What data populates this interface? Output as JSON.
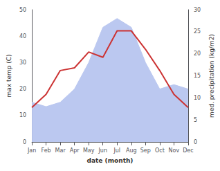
{
  "chart_data": {
    "type": "line",
    "categories": [
      "Jan",
      "Feb",
      "Mar",
      "Apr",
      "May",
      "Jun",
      "Jul",
      "Aug",
      "Sep",
      "Oct",
      "Nov",
      "Dec"
    ],
    "xlabel": "date (month)",
    "ylabel": "max temp (C)",
    "y2label": "med. precipitation (kg/m2)",
    "series": [
      {
        "type": "area",
        "axis": "y2",
        "color": "#bbc8f0",
        "values": [
          9,
          8,
          9,
          12,
          18,
          26,
          28,
          26,
          18,
          12,
          13,
          12
        ]
      },
      {
        "type": "line",
        "color": "#cc3333",
        "values": [
          13,
          18,
          27,
          28,
          34,
          32,
          42,
          42,
          35,
          27,
          18,
          13
        ]
      }
    ],
    "ylim": [
      0,
      50
    ],
    "yticks": [
      0,
      10,
      20,
      30,
      40,
      50
    ],
    "y2lim": [
      0,
      30
    ],
    "y2ticks": [
      0,
      5,
      10,
      15,
      20,
      25,
      30
    ],
    "grid": false
  }
}
